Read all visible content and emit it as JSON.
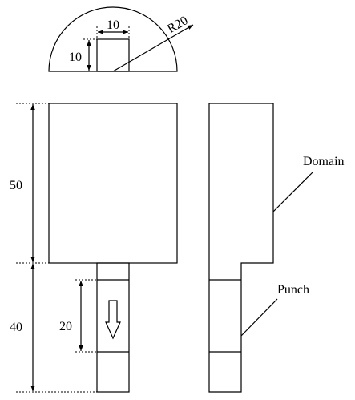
{
  "top_view": {
    "width_label": "10",
    "height_label": "10",
    "radius_label": "R20"
  },
  "front_view": {
    "domain_height_label": "50",
    "punch_total_label": "40",
    "punch_stroke_label": "20"
  },
  "side_view": {
    "domain_label": "Domain",
    "punch_label": "Punch"
  },
  "icons": {
    "stroke_arrow": "down-arrow-icon"
  }
}
